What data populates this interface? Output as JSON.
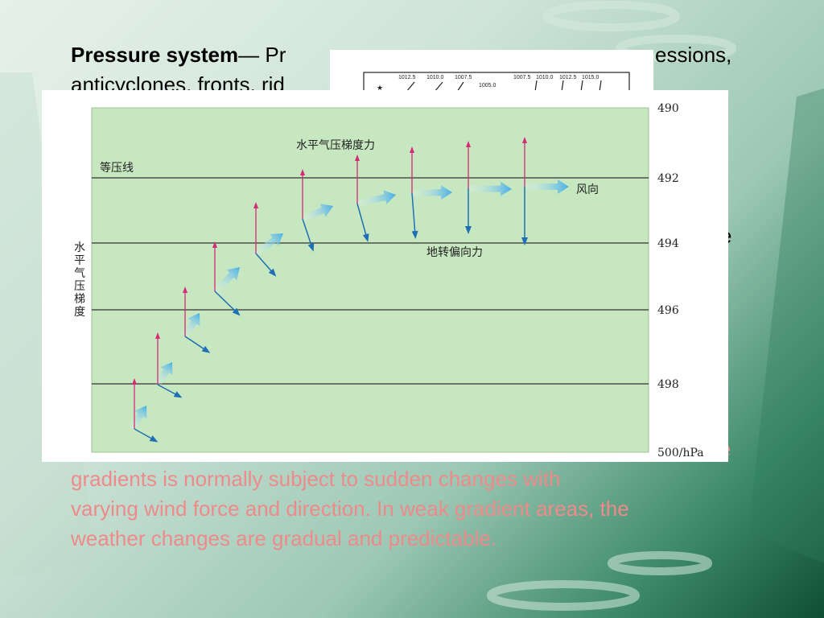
{
  "slide": {
    "heading_bold": "Pressure system",
    "heading_rest": "— Pr",
    "heading_tail": "essions,",
    "line2_visible": "anticyclones, fronts, rid",
    "tail_letter": "e",
    "pink_line1": "gradients is normally subject to sudden changes with",
    "pink_line2": "varying wind force and direction. In weak gradient areas, the",
    "pink_line3": "weather changes are gradual and predictable.",
    "pink_overflow": "e"
  },
  "map_insert": {
    "labels": [
      "1012.5",
      "1010.0",
      "1007.5",
      "1005.0",
      "1007.5",
      "1010.0",
      "1012.5",
      "1015.0"
    ]
  },
  "diagram": {
    "isobar_label": "等压线",
    "pgf_label": "水平气压梯度力",
    "wind_label": "风向",
    "coriolis_label": "地转偏向力",
    "side_label": [
      "水",
      "平",
      "气",
      "压",
      "梯",
      "度"
    ],
    "isobars": [
      {
        "value": "490"
      },
      {
        "value": "492"
      },
      {
        "value": "494"
      },
      {
        "value": "496"
      },
      {
        "value": "498"
      },
      {
        "value": "500/hPa"
      }
    ],
    "colors": {
      "panel": "#c6e7c0",
      "pgf_arrow": "#d42a7a",
      "coriolis_arrow": "#1e6fb3",
      "wind_arrow": "#5ab7e6"
    }
  }
}
